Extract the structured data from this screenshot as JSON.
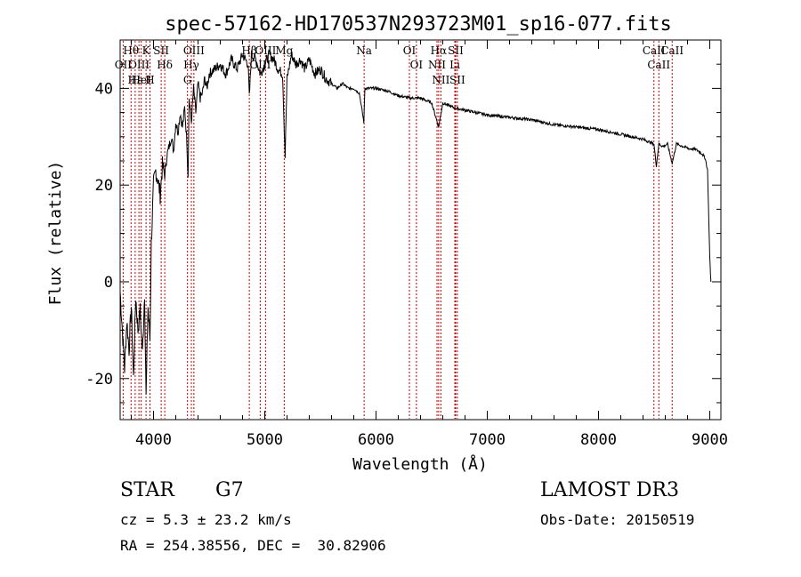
{
  "chart_data": {
    "type": "line",
    "title": "spec-57162-HD170537N293723M01_sp16-077.fits",
    "xlabel": "Wavelength (Å)",
    "ylabel": "Flux (relative)",
    "xlim": [
      3700,
      9100
    ],
    "ylim": [
      -28.5,
      50
    ],
    "xticks": [
      4000,
      5000,
      6000,
      7000,
      8000,
      9000
    ],
    "yticks": [
      -20,
      0,
      20,
      40
    ],
    "series": [
      {
        "name": "flux",
        "x": [
          3700,
          3720,
          3740,
          3760,
          3780,
          3800,
          3820,
          3840,
          3860,
          3880,
          3900,
          3920,
          3933,
          3950,
          3968,
          3980,
          4000,
          4020,
          4040,
          4060,
          4080,
          4101,
          4120,
          4140,
          4160,
          4180,
          4200,
          4220,
          4240,
          4260,
          4280,
          4300,
          4310,
          4320,
          4340,
          4360,
          4380,
          4400,
          4420,
          4440,
          4460,
          4480,
          4500,
          4550,
          4600,
          4650,
          4700,
          4750,
          4800,
          4850,
          4861,
          4880,
          4920,
          4960,
          5000,
          5040,
          5080,
          5120,
          5160,
          5183,
          5200,
          5240,
          5280,
          5320,
          5360,
          5400,
          5450,
          5500,
          5550,
          5600,
          5650,
          5700,
          5750,
          5800,
          5850,
          5890,
          5900,
          5950,
          6000,
          6100,
          6200,
          6300,
          6400,
          6500,
          6563,
          6600,
          6700,
          6800,
          6900,
          7000,
          7200,
          7400,
          7600,
          7800,
          8000,
          8200,
          8400,
          8498,
          8520,
          8542,
          8580,
          8620,
          8662,
          8700,
          8760,
          8820,
          8860,
          8900,
          8930,
          8960,
          8980,
          9000,
          9010
        ],
        "values": [
          -2,
          -10,
          -18,
          -8,
          -14,
          -5,
          -20,
          -3,
          -10,
          -6,
          -15,
          -2,
          -24,
          -5,
          -12,
          8,
          20,
          23,
          21,
          18,
          24,
          22,
          26,
          28,
          30,
          27,
          33,
          31,
          35,
          32,
          36,
          29,
          22,
          38,
          33,
          40,
          35,
          41,
          38,
          39,
          42,
          40,
          43,
          44,
          45,
          43,
          46,
          44,
          47,
          45,
          38,
          47,
          46,
          43,
          45,
          47,
          46,
          44,
          43,
          26,
          42,
          47,
          45,
          46,
          44,
          46,
          43,
          44,
          42,
          41,
          40,
          41,
          40,
          40,
          39,
          33,
          40,
          40,
          40,
          39.5,
          38.5,
          38,
          38,
          37,
          32,
          37,
          36,
          35.5,
          35,
          34.5,
          34,
          33.5,
          32.5,
          32,
          31.5,
          30.5,
          29.5,
          28.5,
          24,
          28.5,
          28,
          28.5,
          24.5,
          28.5,
          28,
          27.5,
          27.5,
          27,
          26.5,
          25.5,
          23,
          5,
          0
        ]
      }
    ],
    "line_labels": [
      {
        "text": "Hθ",
        "wl": 3798
      },
      {
        "text": "OII",
        "wl": 3727
      },
      {
        "text": "OIII",
        "wl": 3869
      },
      {
        "text": "Hε",
        "wl": 3835
      },
      {
        "text": "HeI",
        "wl": 3889
      },
      {
        "text": "K",
        "wl": 3933
      },
      {
        "text": "H",
        "wl": 3968
      },
      {
        "text": "SII",
        "wl": 4069
      },
      {
        "text": "Hδ",
        "wl": 4101
      },
      {
        "text": "OIII",
        "wl": 4363
      },
      {
        "text": "Hγ",
        "wl": 4340
      },
      {
        "text": "G",
        "wl": 4305
      },
      {
        "text": "Hβ",
        "wl": 4861
      },
      {
        "text": "OIII",
        "wl": 4959
      },
      {
        "text": "OIII",
        "wl": 5007
      },
      {
        "text": "Mg",
        "wl": 5175
      },
      {
        "text": "Na",
        "wl": 5893
      },
      {
        "text": "OI",
        "wl": 6300
      },
      {
        "text": "OI",
        "wl": 6363
      },
      {
        "text": "Hα",
        "wl": 6563
      },
      {
        "text": "NII",
        "wl": 6548
      },
      {
        "text": "NII",
        "wl": 6583
      },
      {
        "text": "SII",
        "wl": 6716
      },
      {
        "text": "Li",
        "wl": 6708
      },
      {
        "text": "SII",
        "wl": 6731
      },
      {
        "text": "CaII",
        "wl": 8498
      },
      {
        "text": "CaII",
        "wl": 8542
      },
      {
        "text": "CaII",
        "wl": 8662
      }
    ],
    "line_color": "#cc0000"
  },
  "info": {
    "object_class": "STAR",
    "subclass": "G7",
    "survey": "LAMOST DR3",
    "redshift": "cz = 5.3 ± 23.2 km/s",
    "obs_date": "Obs-Date: 20150519",
    "coords": "RA = 254.38556, DEC =  30.82906"
  }
}
